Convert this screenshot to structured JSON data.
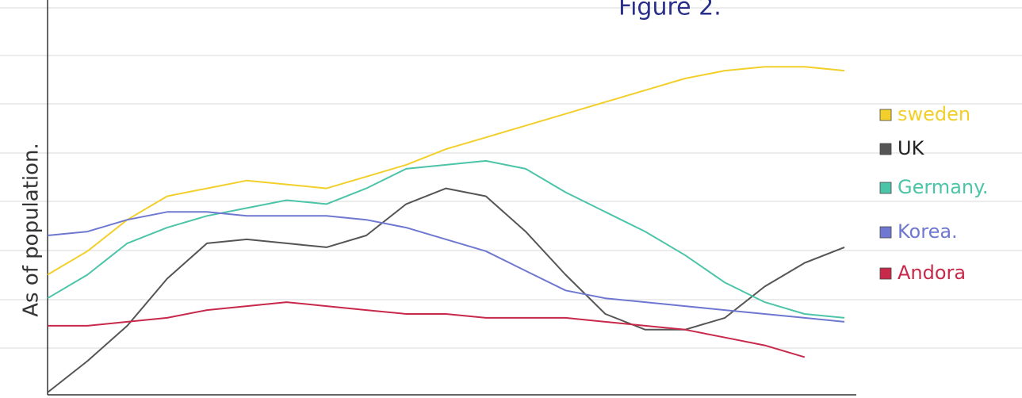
{
  "chart_data": {
    "type": "line",
    "title": "Figure 2.",
    "y_label": "As of population.",
    "x": [
      0,
      1,
      2,
      3,
      4,
      5,
      6,
      7,
      8,
      9,
      10,
      11,
      12,
      13,
      14,
      15,
      16,
      17,
      18,
      19,
      20
    ],
    "xlim": [
      0,
      20
    ],
    "ylim": [
      0,
      100
    ],
    "series": [
      {
        "name": "sweden",
        "color": "#f2cf2a",
        "values": [
          30,
          36,
          44,
          50,
          52,
          54,
          53,
          52,
          55,
          58,
          62,
          65,
          68,
          71,
          74,
          77,
          80,
          82,
          83,
          83,
          82
        ]
      },
      {
        "name": "UK",
        "color": "#555555",
        "values": [
          0,
          8,
          17,
          29,
          38,
          39,
          38,
          37,
          40,
          48,
          52,
          50,
          41,
          30,
          20,
          16,
          16,
          19,
          27,
          33,
          37
        ]
      },
      {
        "name": "Germany.",
        "color": "#4cc4a8",
        "values": [
          24,
          30,
          38,
          42,
          45,
          47,
          49,
          48,
          52,
          57,
          58,
          59,
          57,
          51,
          46,
          41,
          35,
          28,
          23,
          20,
          19
        ]
      },
      {
        "name": "Korea.",
        "color": "#6f78d0",
        "values": [
          40,
          41,
          44,
          46,
          46,
          45,
          45,
          45,
          44,
          42,
          39,
          36,
          31,
          26,
          24,
          23,
          22,
          21,
          20,
          19,
          18
        ]
      },
      {
        "name": "Andora",
        "color": "#c8284a",
        "values": [
          17,
          17,
          18,
          19,
          21,
          22,
          23,
          22,
          21,
          20,
          20,
          19,
          19,
          19,
          18,
          17,
          16,
          14,
          12,
          9,
          null
        ]
      }
    ]
  }
}
